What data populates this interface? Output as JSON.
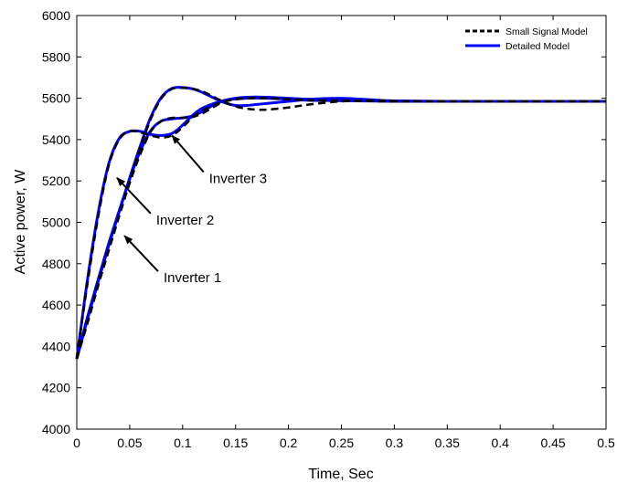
{
  "chart_data": {
    "type": "line",
    "xlabel": "Time, Sec",
    "ylabel": "Active power, W",
    "xlim": [
      0,
      0.5
    ],
    "ylim": [
      4000,
      6000
    ],
    "xticks": [
      "0",
      "0.05",
      "0.1",
      "0.15",
      "0.2",
      "0.25",
      "0.3",
      "0.35",
      "0.4",
      "0.45",
      "0.5"
    ],
    "yticks": [
      "4000",
      "4200",
      "4400",
      "4600",
      "4800",
      "5000",
      "5200",
      "5400",
      "5600",
      "5800",
      "6000"
    ],
    "grid": false,
    "legend_position": "top-right",
    "legend": [
      {
        "label": "Small Signal Model",
        "style": "dashed",
        "color": "#000000"
      },
      {
        "label": "Detailed Model",
        "style": "solid",
        "color": "#0000ff"
      }
    ],
    "series": [
      {
        "name": "Small Signal Model",
        "color": "#000000",
        "style": "dashed",
        "curves": [
          {
            "x": [
              0,
              0.01,
              0.02,
              0.03,
              0.04,
              0.05,
              0.06,
              0.07,
              0.08,
              0.09,
              0.1,
              0.11,
              0.12,
              0.13,
              0.14,
              0.15,
              0.16,
              0.18,
              0.2,
              0.22,
              0.25,
              0.3,
              0.35,
              0.4,
              0.5
            ],
            "y": [
              4340,
              4520,
              4700,
              4870,
              5030,
              5190,
              5330,
              5440,
              5490,
              5505,
              5505,
              5510,
              5530,
              5560,
              5585,
              5595,
              5600,
              5600,
              5595,
              5590,
              5588,
              5585,
              5585,
              5585,
              5585
            ]
          },
          {
            "x": [
              0,
              0.01,
              0.02,
              0.03,
              0.04,
              0.05,
              0.06,
              0.07,
              0.08,
              0.09,
              0.1,
              0.11,
              0.12,
              0.14,
              0.16,
              0.18,
              0.2,
              0.22,
              0.25,
              0.3,
              0.35,
              0.4,
              0.5
            ],
            "y": [
              4340,
              4700,
              5020,
              5270,
              5400,
              5440,
              5435,
              5420,
              5410,
              5420,
              5460,
              5510,
              5545,
              5585,
              5600,
              5600,
              5595,
              5590,
              5588,
              5585,
              5585,
              5585,
              5585
            ]
          },
          {
            "x": [
              0,
              0.01,
              0.02,
              0.03,
              0.04,
              0.05,
              0.06,
              0.07,
              0.08,
              0.09,
              0.1,
              0.11,
              0.12,
              0.13,
              0.14,
              0.15,
              0.16,
              0.17,
              0.18,
              0.2,
              0.22,
              0.25,
              0.28,
              0.3,
              0.35,
              0.4,
              0.5
            ],
            "y": [
              4340,
              4510,
              4690,
              4860,
              5030,
              5200,
              5360,
              5500,
              5600,
              5645,
              5650,
              5645,
              5630,
              5605,
              5580,
              5560,
              5550,
              5545,
              5545,
              5555,
              5570,
              5585,
              5590,
              5587,
              5585,
              5585,
              5585
            ]
          }
        ]
      },
      {
        "name": "Detailed Model",
        "color": "#0000ff",
        "style": "solid",
        "curves": [
          {
            "x": [
              0,
              0.01,
              0.02,
              0.03,
              0.04,
              0.05,
              0.06,
              0.07,
              0.08,
              0.09,
              0.1,
              0.11,
              0.12,
              0.13,
              0.14,
              0.15,
              0.16,
              0.18,
              0.2,
              0.22,
              0.25,
              0.3,
              0.35,
              0.4,
              0.5
            ],
            "y": [
              4340,
              4540,
              4720,
              4895,
              5055,
              5210,
              5345,
              5445,
              5490,
              5500,
              5505,
              5515,
              5540,
              5570,
              5590,
              5600,
              5605,
              5605,
              5600,
              5595,
              5590,
              5586,
              5585,
              5585,
              5585
            ]
          },
          {
            "x": [
              0,
              0.01,
              0.02,
              0.03,
              0.04,
              0.05,
              0.06,
              0.07,
              0.08,
              0.09,
              0.1,
              0.11,
              0.12,
              0.14,
              0.16,
              0.18,
              0.2,
              0.22,
              0.25,
              0.3,
              0.35,
              0.4,
              0.5
            ],
            "y": [
              4340,
              4720,
              5040,
              5280,
              5405,
              5440,
              5440,
              5425,
              5420,
              5430,
              5470,
              5520,
              5555,
              5590,
              5600,
              5600,
              5595,
              5590,
              5588,
              5585,
              5585,
              5585,
              5585
            ]
          },
          {
            "x": [
              0,
              0.01,
              0.02,
              0.03,
              0.04,
              0.05,
              0.06,
              0.07,
              0.08,
              0.09,
              0.1,
              0.11,
              0.12,
              0.13,
              0.14,
              0.15,
              0.16,
              0.17,
              0.18,
              0.2,
              0.22,
              0.25,
              0.28,
              0.3,
              0.35,
              0.4,
              0.5
            ],
            "y": [
              4340,
              4530,
              4710,
              4885,
              5050,
              5215,
              5370,
              5510,
              5605,
              5648,
              5652,
              5645,
              5625,
              5600,
              5578,
              5565,
              5565,
              5570,
              5575,
              5585,
              5595,
              5600,
              5592,
              5587,
              5585,
              5585,
              5585
            ]
          }
        ]
      }
    ],
    "annotations": [
      {
        "text": "Inverter 3",
        "target_x": 0.09,
        "target_y": 5420,
        "label_x": 0.125,
        "label_y": 5190
      },
      {
        "text": "Inverter 2",
        "target_x": 0.038,
        "target_y": 5215,
        "label_x": 0.075,
        "label_y": 4990
      },
      {
        "text": "Inverter 1",
        "target_x": 0.045,
        "target_y": 4935,
        "label_x": 0.082,
        "label_y": 4710
      }
    ]
  }
}
